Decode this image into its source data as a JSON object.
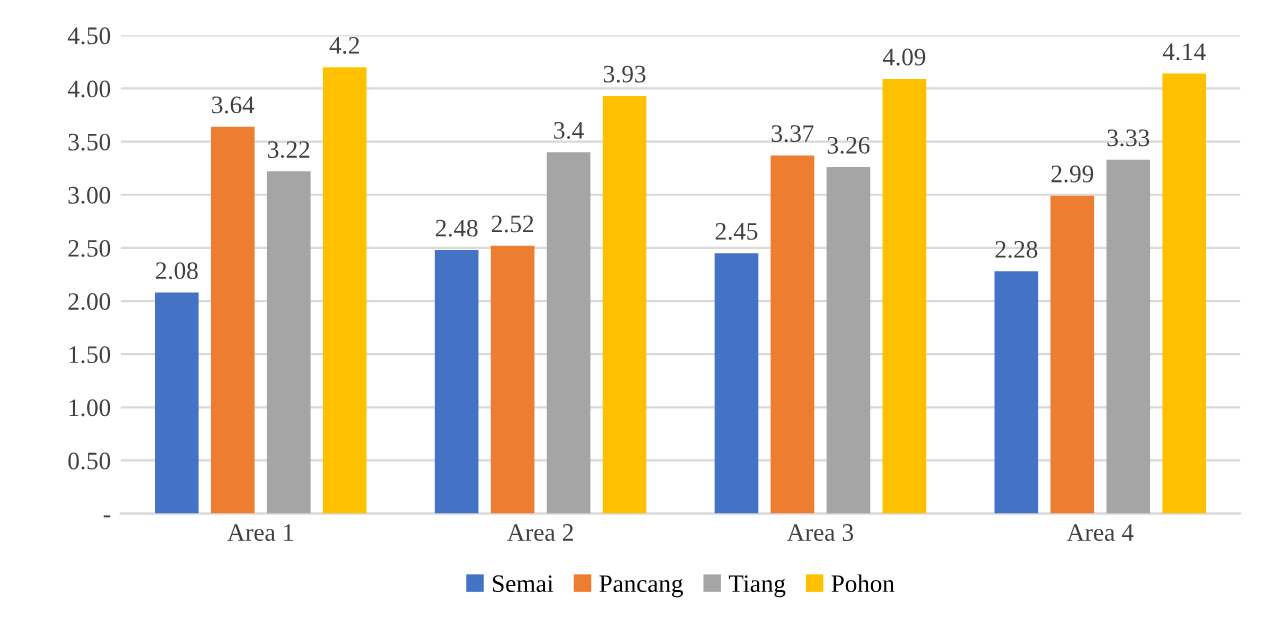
{
  "chart_data": {
    "type": "bar",
    "categories": [
      "Area 1",
      "Area 2",
      "Area 3",
      "Area 4"
    ],
    "series": [
      {
        "name": "Semai",
        "color": "#4472c4",
        "values": [
          2.08,
          2.48,
          2.45,
          2.28
        ]
      },
      {
        "name": "Pancang",
        "color": "#ed7d31",
        "values": [
          3.64,
          2.52,
          3.37,
          2.99
        ]
      },
      {
        "name": "Tiang",
        "color": "#a5a5a5",
        "values": [
          3.22,
          3.4,
          3.26,
          3.33
        ]
      },
      {
        "name": "Pohon",
        "color": "#ffc000",
        "values": [
          4.2,
          3.93,
          4.09,
          4.14
        ]
      }
    ],
    "ylim": [
      0,
      4.5
    ],
    "yticks": [
      {
        "value": 0,
        "label": "-"
      },
      {
        "value": 0.5,
        "label": "0.50"
      },
      {
        "value": 1,
        "label": "1.00"
      },
      {
        "value": 1.5,
        "label": "1.50"
      },
      {
        "value": 2,
        "label": "2.00"
      },
      {
        "value": 2.5,
        "label": "2.50"
      },
      {
        "value": 3,
        "label": "3.00"
      },
      {
        "value": 3.5,
        "label": "3.50"
      },
      {
        "value": 4,
        "label": "4.00"
      },
      {
        "value": 4.5,
        "label": "4.50"
      }
    ],
    "grid": "y",
    "legend": "bottom",
    "data_labels": true
  }
}
